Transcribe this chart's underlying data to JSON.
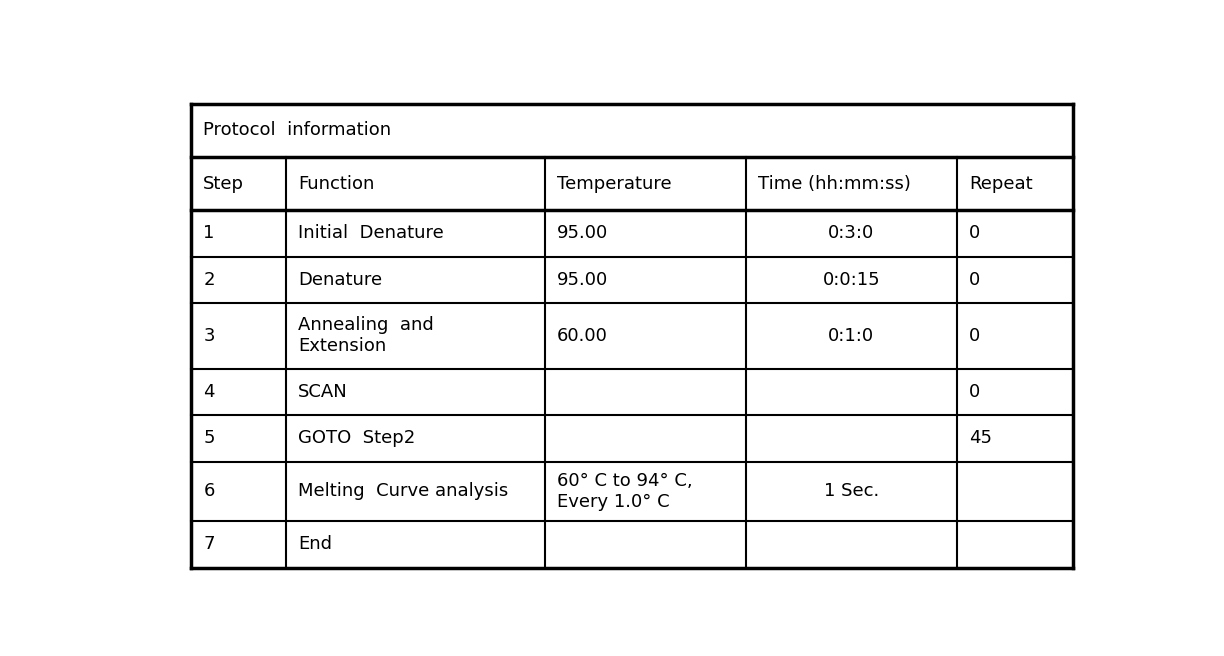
{
  "title": "Protocol  information",
  "headers": [
    "Step",
    "Function",
    "Temperature",
    "Time (hh:mm:ss)",
    "Repeat"
  ],
  "rows": [
    [
      "1",
      "Initial  Denature",
      "95.00",
      "0:3:0",
      "0"
    ],
    [
      "2",
      "Denature",
      "95.00",
      "0:0:15",
      "0"
    ],
    [
      "3",
      "Annealing  and\nExtension",
      "60.00",
      "0:1:0",
      "0"
    ],
    [
      "4",
      "SCAN",
      "",
      "",
      "0"
    ],
    [
      "5",
      "GOTO  Step2",
      "",
      "",
      "45"
    ],
    [
      "6",
      "Melting  Curve analysis",
      "60° C to 94° C,\nEvery 1.0° C",
      "1 Sec.",
      ""
    ],
    [
      "7",
      "End",
      "",
      "",
      ""
    ]
  ],
  "bg_color": "#ffffff",
  "text_color": "#000000",
  "border_color": "#000000",
  "header_fontsize": 13,
  "cell_fontsize": 13,
  "title_fontsize": 13,
  "figsize": [
    12.24,
    6.56
  ],
  "dpi": 100
}
